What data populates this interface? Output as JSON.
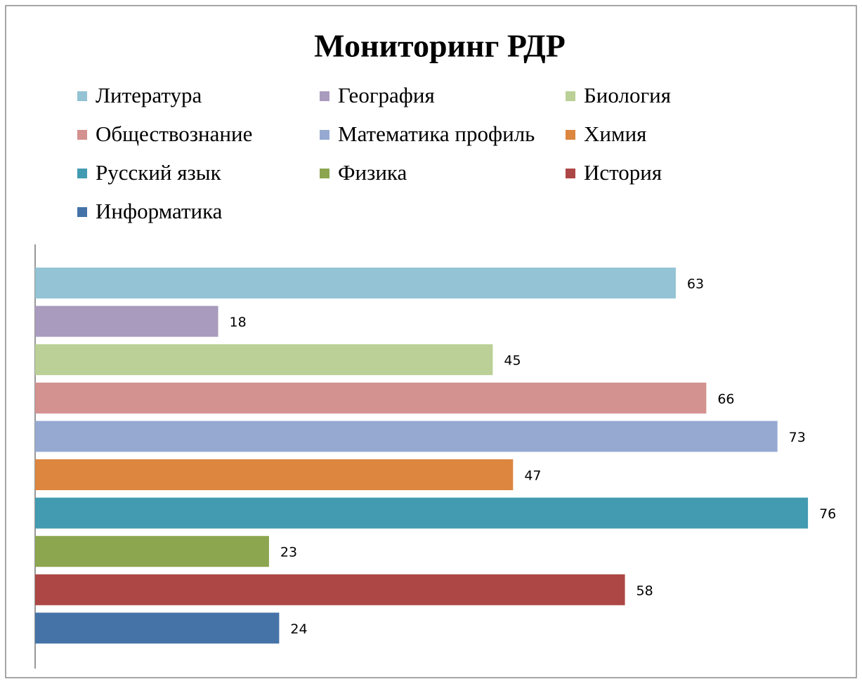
{
  "chart_data": {
    "type": "bar",
    "orientation": "horizontal",
    "title": "Мониторинг  РДР",
    "xlim": [
      0,
      80
    ],
    "series": [
      {
        "name": "Литература",
        "color": "#93c3d4",
        "values": [
          63
        ]
      },
      {
        "name": "География",
        "color": "#a99bbd",
        "values": [
          18
        ]
      },
      {
        "name": "Биология",
        "color": "#bad096",
        "values": [
          45
        ]
      },
      {
        "name": "Обществознание",
        "color": "#d39190",
        "values": [
          66
        ]
      },
      {
        "name": "Математика профиль",
        "color": "#95a9d1",
        "values": [
          73
        ]
      },
      {
        "name": "Химия",
        "color": "#dc863f",
        "values": [
          47
        ]
      },
      {
        "name": "Русский язык",
        "color": "#429bb1",
        "values": [
          76
        ]
      },
      {
        "name": "Физика",
        "color": "#8ba64f",
        "values": [
          23
        ]
      },
      {
        "name": "История",
        "color": "#ac4745",
        "values": [
          58
        ]
      },
      {
        "name": "Информатика",
        "color": "#4573a8",
        "values": [
          24
        ]
      }
    ],
    "legend": "top",
    "data_labels": true
  }
}
